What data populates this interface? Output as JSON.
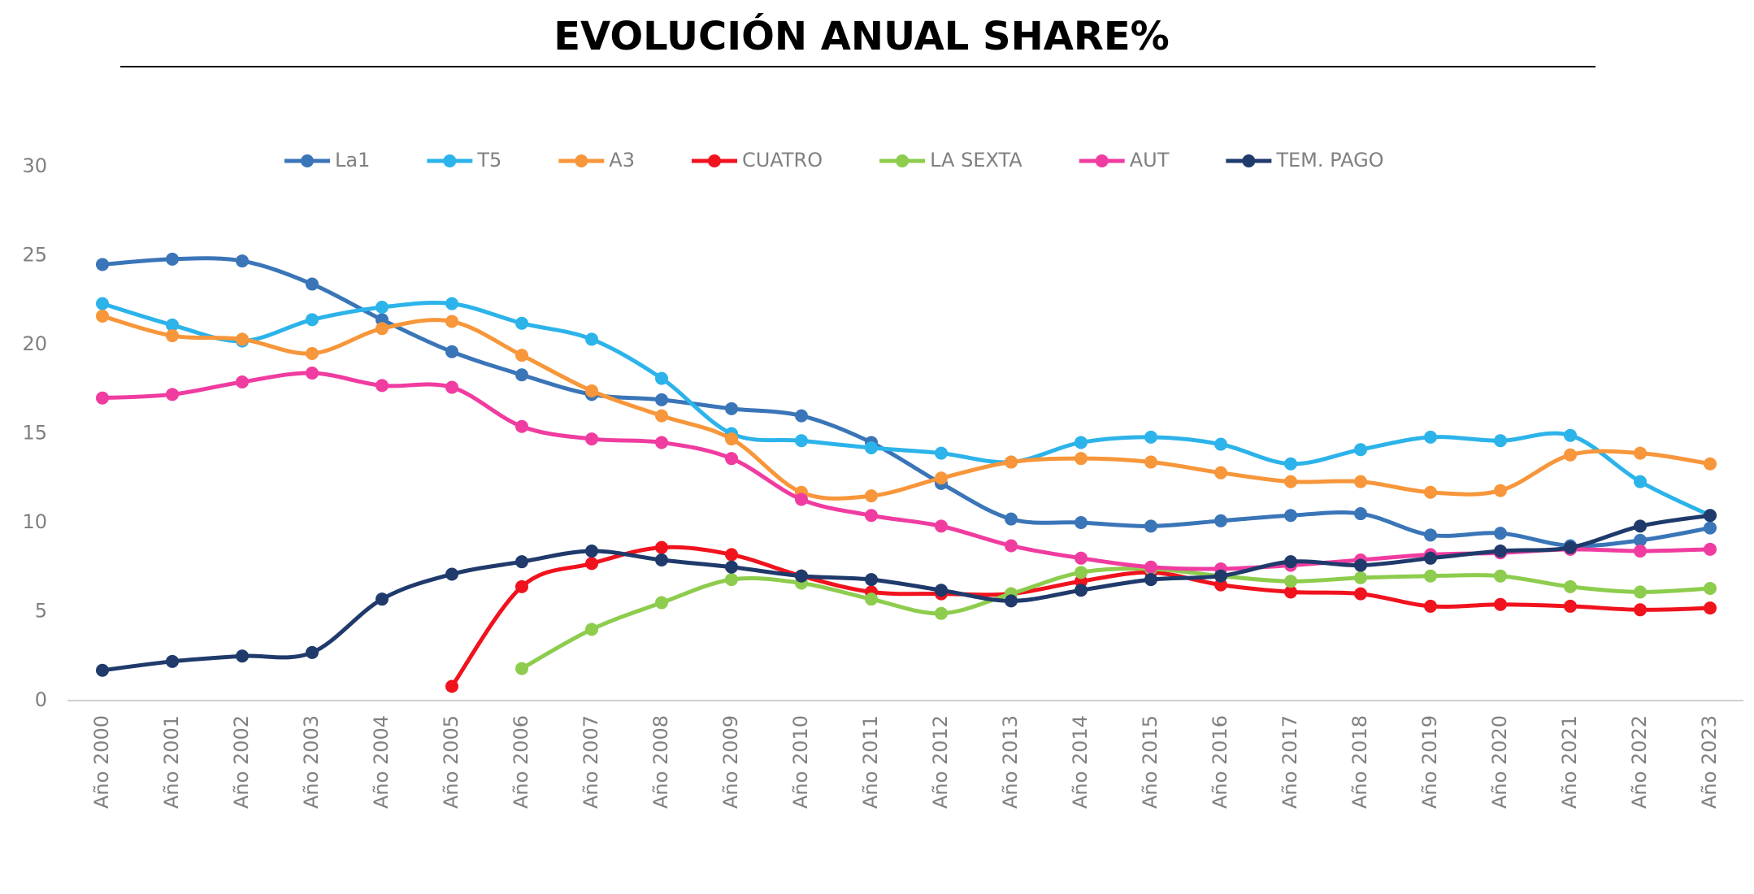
{
  "chart_data": {
    "type": "line",
    "title": "EVOLUCIÓN ANUAL SHARE%",
    "categories": [
      "Año 2000",
      "Año 2001",
      "Año 2002",
      "Año 2003",
      "Año 2004",
      "Año 2005",
      "Año 2006",
      "Año 2007",
      "Año 2008",
      "Año 2009",
      "Año 2010",
      "Año 2011",
      "Año 2012",
      "Año 2013",
      "Año 2014",
      "Año 2015",
      "Año 2016",
      "Año 2017",
      "Año 2018",
      "Año 2019",
      "Año 2020",
      "Año 2021",
      "Año 2022",
      "Año 2023"
    ],
    "series": [
      {
        "name": "La1",
        "color": "#3a75b8",
        "values": [
          24.5,
          24.8,
          24.7,
          23.4,
          21.4,
          19.6,
          18.3,
          17.2,
          16.9,
          16.4,
          16.0,
          14.5,
          12.2,
          10.2,
          10.0,
          9.8,
          10.1,
          10.4,
          10.5,
          9.3,
          9.4,
          8.7,
          9.0,
          9.7
        ]
      },
      {
        "name": "T5",
        "color": "#2cb3ea",
        "values": [
          22.3,
          21.1,
          20.2,
          21.4,
          22.1,
          22.3,
          21.2,
          20.3,
          18.1,
          15.0,
          14.6,
          14.2,
          13.9,
          13.4,
          14.5,
          14.8,
          14.4,
          13.3,
          14.1,
          14.8,
          14.6,
          14.9,
          12.3,
          10.4
        ]
      },
      {
        "name": "A3",
        "color": "#f7963a",
        "values": [
          21.6,
          20.5,
          20.3,
          19.5,
          20.9,
          21.3,
          19.4,
          17.4,
          16.0,
          14.7,
          11.7,
          11.5,
          12.5,
          13.4,
          13.6,
          13.4,
          12.8,
          12.3,
          12.3,
          11.7,
          11.8,
          13.8,
          13.9,
          13.3
        ]
      },
      {
        "name": "CUATRO",
        "color": "#f0131e",
        "values": [
          null,
          null,
          null,
          null,
          null,
          0.8,
          6.4,
          7.7,
          8.6,
          8.2,
          7.0,
          6.1,
          6.0,
          6.0,
          6.7,
          7.2,
          6.5,
          6.1,
          6.0,
          5.3,
          5.4,
          5.3,
          5.1,
          5.2
        ]
      },
      {
        "name": "LA SEXTA",
        "color": "#8dcc4d",
        "values": [
          null,
          null,
          null,
          null,
          null,
          null,
          1.8,
          4.0,
          5.5,
          6.8,
          6.6,
          5.7,
          4.9,
          6.0,
          7.2,
          7.4,
          7.0,
          6.7,
          6.9,
          7.0,
          7.0,
          6.4,
          6.1,
          6.3
        ]
      },
      {
        "name": "AUT",
        "color": "#f03ca0",
        "values": [
          17.0,
          17.2,
          17.9,
          18.4,
          17.7,
          17.6,
          15.4,
          14.7,
          14.5,
          13.6,
          11.3,
          10.4,
          9.8,
          8.7,
          8.0,
          7.5,
          7.4,
          7.6,
          7.9,
          8.2,
          8.3,
          8.5,
          8.4,
          8.5
        ]
      },
      {
        "name": "TEM. PAGO",
        "color": "#1f3a6b",
        "values": [
          1.7,
          2.2,
          2.5,
          2.7,
          5.7,
          7.1,
          7.8,
          8.4,
          7.9,
          7.5,
          7.0,
          6.8,
          6.2,
          5.6,
          6.2,
          6.8,
          7.0,
          7.8,
          7.6,
          8.0,
          8.4,
          8.6,
          9.8,
          10.4
        ]
      }
    ],
    "ylim": [
      0,
      30
    ],
    "yticks": [
      0,
      5,
      10,
      15,
      20,
      25,
      30
    ],
    "grid": false,
    "legend": "top"
  }
}
